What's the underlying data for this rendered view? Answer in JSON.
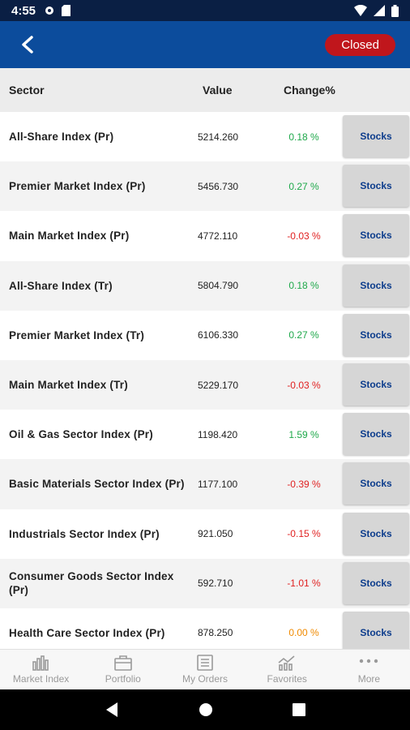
{
  "status_bar": {
    "time": "4:55"
  },
  "app_bar": {
    "status_label": "Closed"
  },
  "table": {
    "headers": {
      "sector": "Sector",
      "value": "Value",
      "change": "Change%"
    },
    "rows": [
      {
        "sector": "All-Share Index (Pr)",
        "value": "5214.260",
        "change": "0.18 %",
        "color": "#1ea84a",
        "stocks": "Stocks"
      },
      {
        "sector": "Premier Market Index  (Pr)",
        "value": "5456.730",
        "change": "0.27 %",
        "color": "#1ea84a",
        "stocks": "Stocks"
      },
      {
        "sector": "Main Market Index (Pr)",
        "value": "4772.110",
        "change": "-0.03 %",
        "color": "#e02020",
        "stocks": "Stocks"
      },
      {
        "sector": "All-Share Index  (Tr)",
        "value": "5804.790",
        "change": "0.18 %",
        "color": "#1ea84a",
        "stocks": "Stocks"
      },
      {
        "sector": "Premier Market Index (Tr)",
        "value": "6106.330",
        "change": "0.27 %",
        "color": "#1ea84a",
        "stocks": "Stocks"
      },
      {
        "sector": "Main Market Index (Tr)",
        "value": "5229.170",
        "change": "-0.03 %",
        "color": "#e02020",
        "stocks": "Stocks"
      },
      {
        "sector": "Oil & Gas Sector Index (Pr)",
        "value": "1198.420",
        "change": "1.59 %",
        "color": "#1ea84a",
        "stocks": "Stocks"
      },
      {
        "sector": "Basic Materials Sector Index (Pr)",
        "value": "1177.100",
        "change": "-0.39 %",
        "color": "#e02020",
        "stocks": "Stocks"
      },
      {
        "sector": "Industrials Sector Index (Pr)",
        "value": "921.050",
        "change": "-0.15 %",
        "color": "#e02020",
        "stocks": "Stocks"
      },
      {
        "sector": "Consumer Goods Sector Index (Pr)",
        "value": "592.710",
        "change": "-1.01 %",
        "color": "#e02020",
        "stocks": "Stocks"
      },
      {
        "sector": "Health Care Sector Index (Pr)",
        "value": "878.250",
        "change": "0.00 %",
        "color": "#f08a00",
        "stocks": "Stocks"
      }
    ]
  },
  "bottom_nav": {
    "items": [
      {
        "label": "Market Index",
        "icon": "bar-chart-icon"
      },
      {
        "label": "Portfolio",
        "icon": "briefcase-icon"
      },
      {
        "label": "My Orders",
        "icon": "orders-list-icon"
      },
      {
        "label": "Favorites",
        "icon": "trend-chart-icon"
      },
      {
        "label": "More",
        "icon": "more-dots-icon"
      }
    ]
  }
}
